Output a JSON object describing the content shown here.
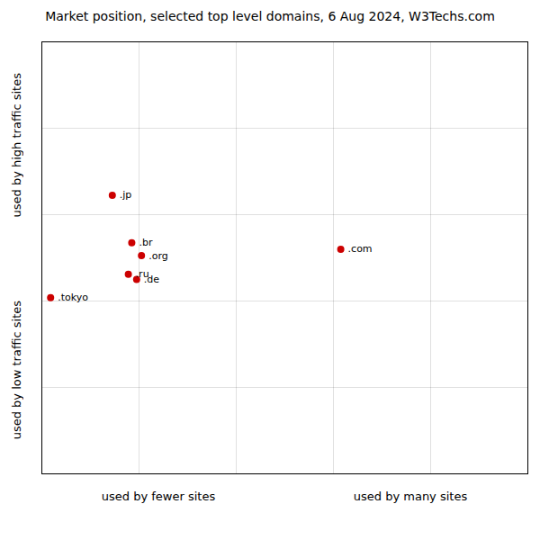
{
  "chart_data": {
    "type": "scatter",
    "title": "Market position, selected top level domains, 6 Aug 2024, W3Techs.com",
    "xlabels": [
      "used by fewer sites",
      "used by many sites"
    ],
    "ylabels": [
      "used by low traffic sites",
      "used by high traffic sites"
    ],
    "labels": [
      ".jp",
      ".br",
      ".org",
      ".ru",
      ".de",
      ".com",
      ".tokyo"
    ],
    "x": [
      0.145,
      0.185,
      0.205,
      0.178,
      0.195,
      0.615,
      0.018
    ],
    "y": [
      0.645,
      0.535,
      0.505,
      0.462,
      0.45,
      0.52,
      0.408
    ],
    "color": "#cc0000",
    "xlim": [
      0.0,
      1.0
    ],
    "ylim": [
      0.0,
      1.0
    ],
    "xticks": [
      0,
      0.2,
      0.4,
      0.6,
      0.8,
      1
    ],
    "yticks": [
      0,
      0.2,
      0.4,
      0.6,
      0.8,
      1
    ],
    "grid": true,
    "tick_labels": false
  }
}
